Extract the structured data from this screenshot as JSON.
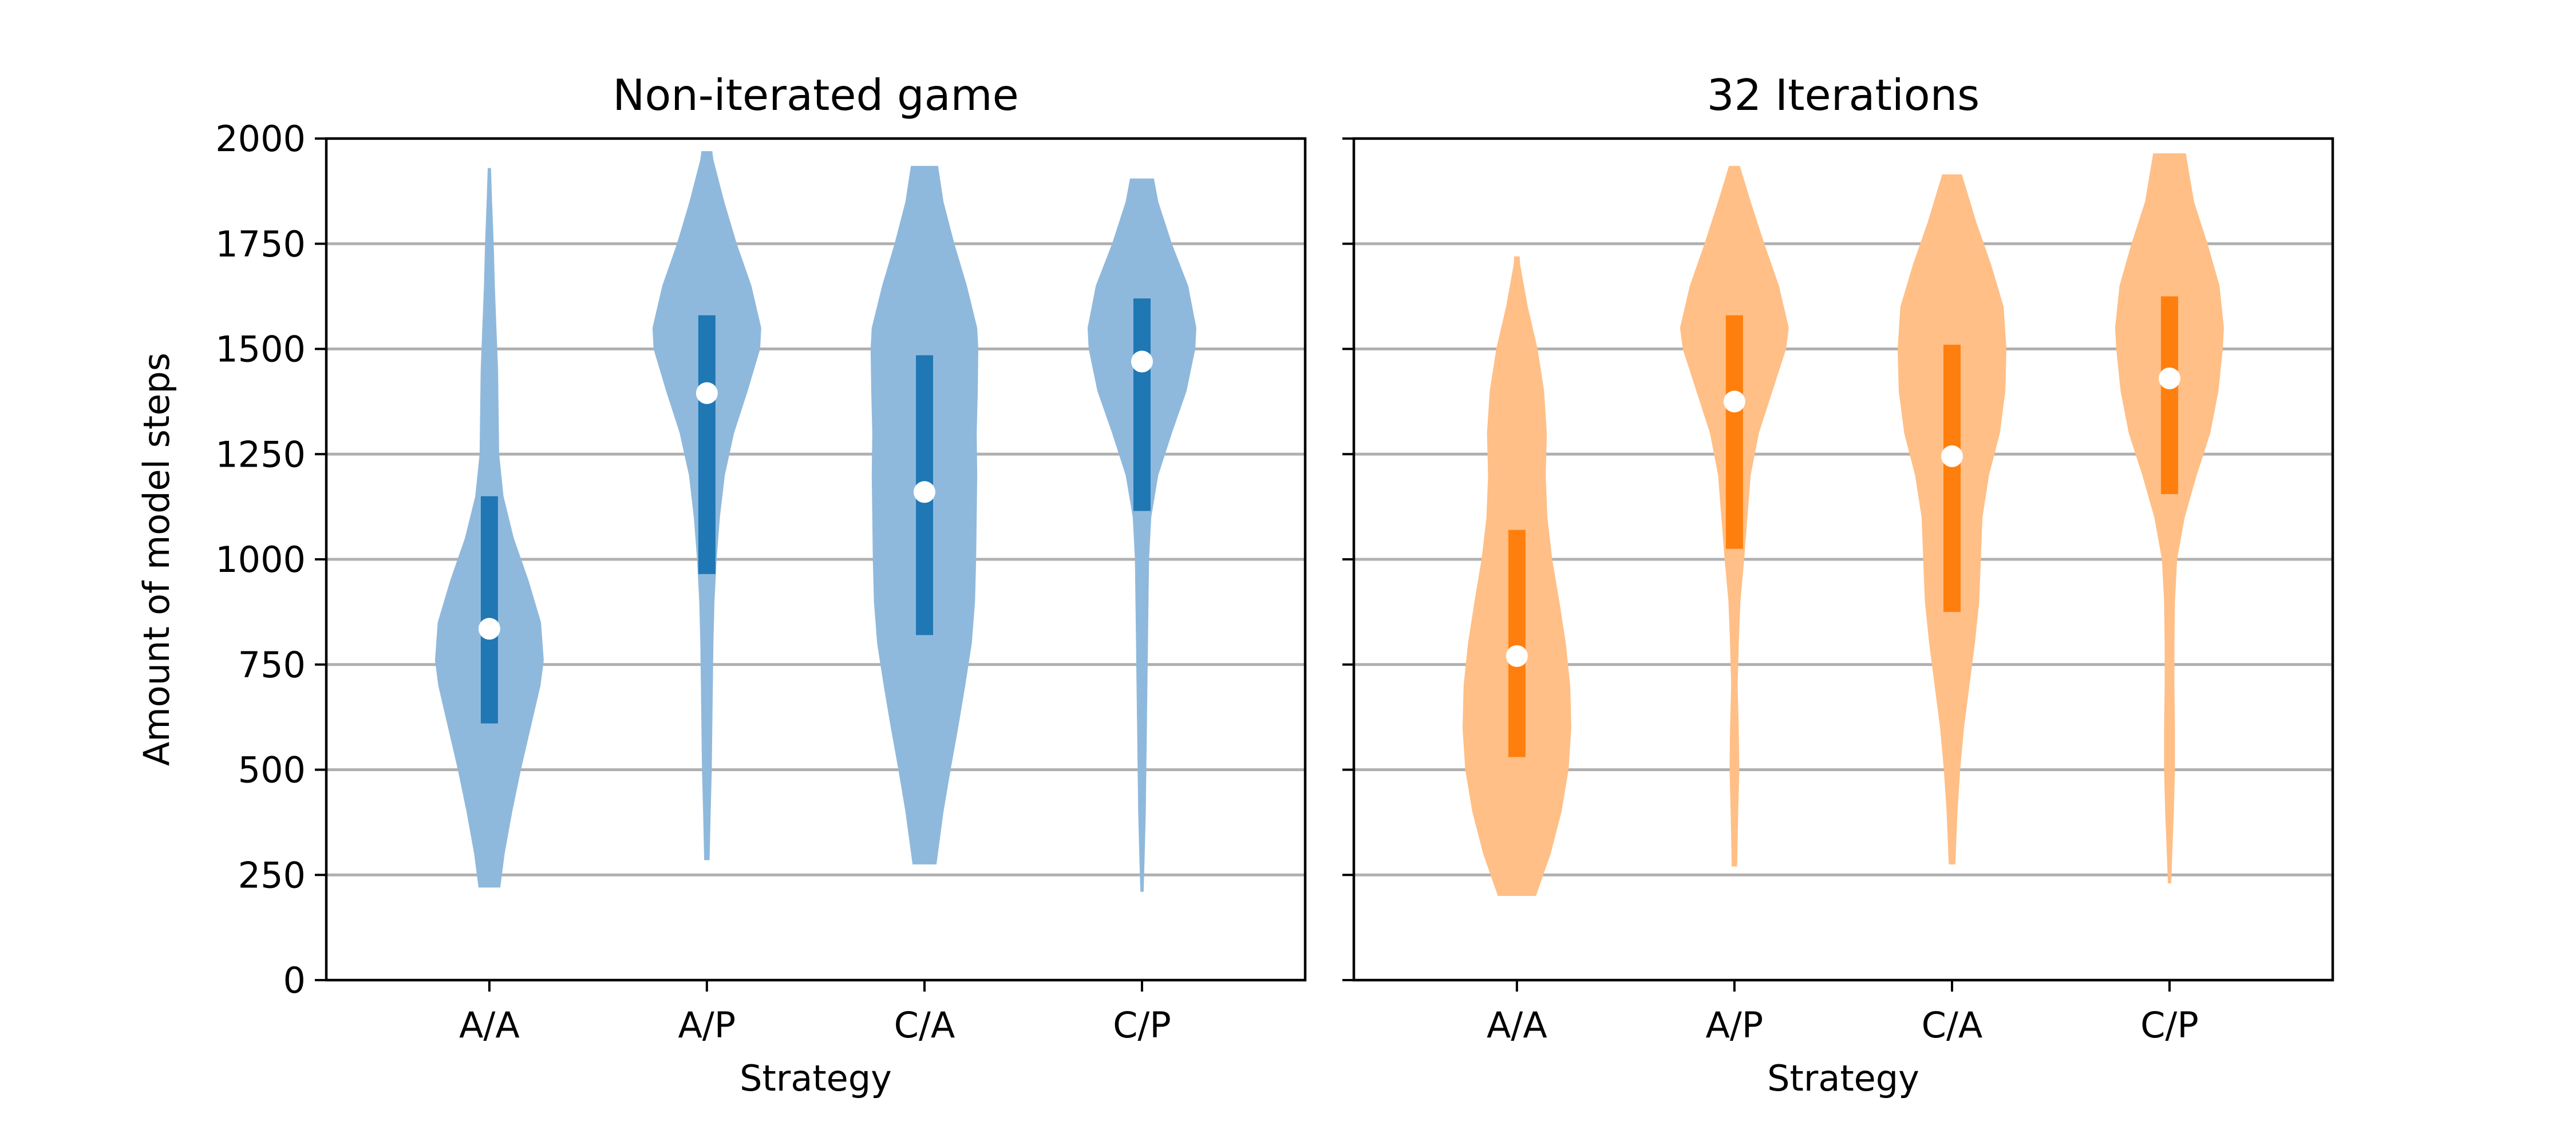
{
  "chart_data": [
    {
      "type": "violin",
      "title": "Non-iterated game",
      "xlabel": "Strategy",
      "ylabel": "Amount of model steps",
      "ylim": [
        0,
        2000
      ],
      "yticks": [
        0,
        250,
        500,
        750,
        1000,
        1250,
        1500,
        1750,
        2000
      ],
      "categories": [
        "A/A",
        "A/P",
        "C/A",
        "C/P"
      ],
      "grid": "horizontal",
      "color": "#1f77b4",
      "body_color": "#8fb9dc",
      "median_color": "#ffffff",
      "distributions": [
        {
          "category": "A/A",
          "min": 220,
          "max": 1930,
          "q1": 610,
          "median": 835,
          "q3": 1150,
          "profile": [
            [
              220,
              0.2
            ],
            [
              300,
              0.28
            ],
            [
              400,
              0.42
            ],
            [
              500,
              0.58
            ],
            [
              600,
              0.76
            ],
            [
              700,
              0.94
            ],
            [
              760,
              1.0
            ],
            [
              850,
              0.95
            ],
            [
              950,
              0.72
            ],
            [
              1050,
              0.45
            ],
            [
              1150,
              0.26
            ],
            [
              1250,
              0.18
            ],
            [
              1350,
              0.17
            ],
            [
              1450,
              0.16
            ],
            [
              1550,
              0.13
            ],
            [
              1650,
              0.1
            ],
            [
              1750,
              0.08
            ],
            [
              1850,
              0.05
            ],
            [
              1930,
              0.03
            ]
          ]
        },
        {
          "category": "A/P",
          "min": 285,
          "max": 1970,
          "q1": 965,
          "median": 1395,
          "q3": 1580,
          "profile": [
            [
              285,
              0.05
            ],
            [
              400,
              0.07
            ],
            [
              500,
              0.09
            ],
            [
              600,
              0.1
            ],
            [
              700,
              0.11
            ],
            [
              800,
              0.12
            ],
            [
              900,
              0.14
            ],
            [
              1000,
              0.18
            ],
            [
              1100,
              0.24
            ],
            [
              1200,
              0.33
            ],
            [
              1300,
              0.5
            ],
            [
              1400,
              0.75
            ],
            [
              1500,
              0.98
            ],
            [
              1550,
              1.0
            ],
            [
              1650,
              0.82
            ],
            [
              1750,
              0.55
            ],
            [
              1850,
              0.32
            ],
            [
              1950,
              0.12
            ],
            [
              1970,
              0.1
            ]
          ]
        },
        {
          "category": "C/A",
          "min": 275,
          "max": 1935,
          "q1": 820,
          "median": 1160,
          "q3": 1485,
          "profile": [
            [
              275,
              0.22
            ],
            [
              400,
              0.35
            ],
            [
              500,
              0.48
            ],
            [
              600,
              0.62
            ],
            [
              700,
              0.75
            ],
            [
              800,
              0.87
            ],
            [
              900,
              0.93
            ],
            [
              1000,
              0.95
            ],
            [
              1100,
              0.96
            ],
            [
              1200,
              0.97
            ],
            [
              1300,
              0.96
            ],
            [
              1400,
              0.98
            ],
            [
              1500,
              0.99
            ],
            [
              1550,
              0.97
            ],
            [
              1650,
              0.78
            ],
            [
              1750,
              0.55
            ],
            [
              1850,
              0.35
            ],
            [
              1935,
              0.25
            ]
          ]
        },
        {
          "category": "C/P",
          "min": 210,
          "max": 1905,
          "q1": 1115,
          "median": 1470,
          "q3": 1620,
          "profile": [
            [
              210,
              0.03
            ],
            [
              300,
              0.05
            ],
            [
              400,
              0.07
            ],
            [
              500,
              0.08
            ],
            [
              600,
              0.09
            ],
            [
              700,
              0.1
            ],
            [
              800,
              0.11
            ],
            [
              900,
              0.12
            ],
            [
              1000,
              0.13
            ],
            [
              1100,
              0.17
            ],
            [
              1200,
              0.3
            ],
            [
              1300,
              0.55
            ],
            [
              1400,
              0.82
            ],
            [
              1500,
              0.98
            ],
            [
              1550,
              1.0
            ],
            [
              1650,
              0.85
            ],
            [
              1750,
              0.55
            ],
            [
              1850,
              0.3
            ],
            [
              1905,
              0.22
            ]
          ]
        }
      ]
    },
    {
      "type": "violin",
      "title": "32 Iterations",
      "xlabel": "Strategy",
      "ylabel": "",
      "ylim": [
        0,
        2000
      ],
      "yticks": [
        0,
        250,
        500,
        750,
        1000,
        1250,
        1500,
        1750,
        2000
      ],
      "categories": [
        "A/A",
        "A/P",
        "C/A",
        "C/P"
      ],
      "grid": "horizontal",
      "color": "#ff7f0e",
      "body_color": "#ffbf86",
      "median_color": "#ffffff",
      "distributions": [
        {
          "category": "A/A",
          "min": 200,
          "max": 1720,
          "q1": 530,
          "median": 770,
          "q3": 1070,
          "profile": [
            [
              200,
              0.35
            ],
            [
              300,
              0.62
            ],
            [
              400,
              0.82
            ],
            [
              500,
              0.95
            ],
            [
              600,
              1.0
            ],
            [
              700,
              0.98
            ],
            [
              800,
              0.9
            ],
            [
              900,
              0.78
            ],
            [
              1000,
              0.65
            ],
            [
              1100,
              0.56
            ],
            [
              1200,
              0.53
            ],
            [
              1300,
              0.55
            ],
            [
              1400,
              0.5
            ],
            [
              1500,
              0.38
            ],
            [
              1600,
              0.2
            ],
            [
              1700,
              0.06
            ],
            [
              1720,
              0.05
            ]
          ]
        },
        {
          "category": "A/P",
          "min": 270,
          "max": 1935,
          "q1": 1025,
          "median": 1375,
          "q3": 1580,
          "profile": [
            [
              270,
              0.05
            ],
            [
              400,
              0.07
            ],
            [
              500,
              0.09
            ],
            [
              600,
              0.08
            ],
            [
              700,
              0.06
            ],
            [
              800,
              0.08
            ],
            [
              900,
              0.11
            ],
            [
              1000,
              0.18
            ],
            [
              1100,
              0.24
            ],
            [
              1200,
              0.3
            ],
            [
              1300,
              0.45
            ],
            [
              1400,
              0.7
            ],
            [
              1500,
              0.95
            ],
            [
              1550,
              1.0
            ],
            [
              1650,
              0.82
            ],
            [
              1750,
              0.55
            ],
            [
              1850,
              0.3
            ],
            [
              1935,
              0.1
            ]
          ]
        },
        {
          "category": "C/A",
          "min": 275,
          "max": 1915,
          "q1": 875,
          "median": 1245,
          "q3": 1510,
          "profile": [
            [
              275,
              0.06
            ],
            [
              400,
              0.1
            ],
            [
              500,
              0.15
            ],
            [
              600,
              0.22
            ],
            [
              700,
              0.32
            ],
            [
              800,
              0.42
            ],
            [
              900,
              0.5
            ],
            [
              1000,
              0.53
            ],
            [
              1100,
              0.56
            ],
            [
              1200,
              0.68
            ],
            [
              1300,
              0.88
            ],
            [
              1400,
              0.98
            ],
            [
              1500,
              1.0
            ],
            [
              1600,
              0.95
            ],
            [
              1700,
              0.72
            ],
            [
              1800,
              0.45
            ],
            [
              1915,
              0.18
            ]
          ]
        },
        {
          "category": "C/P",
          "min": 230,
          "max": 1965,
          "q1": 1155,
          "median": 1430,
          "q3": 1625,
          "profile": [
            [
              230,
              0.03
            ],
            [
              300,
              0.05
            ],
            [
              400,
              0.08
            ],
            [
              500,
              0.1
            ],
            [
              600,
              0.1
            ],
            [
              700,
              0.09
            ],
            [
              800,
              0.09
            ],
            [
              900,
              0.1
            ],
            [
              1000,
              0.14
            ],
            [
              1100,
              0.28
            ],
            [
              1200,
              0.5
            ],
            [
              1300,
              0.75
            ],
            [
              1400,
              0.9
            ],
            [
              1500,
              0.98
            ],
            [
              1550,
              1.0
            ],
            [
              1650,
              0.92
            ],
            [
              1750,
              0.7
            ],
            [
              1850,
              0.45
            ],
            [
              1965,
              0.3
            ]
          ]
        }
      ]
    }
  ]
}
